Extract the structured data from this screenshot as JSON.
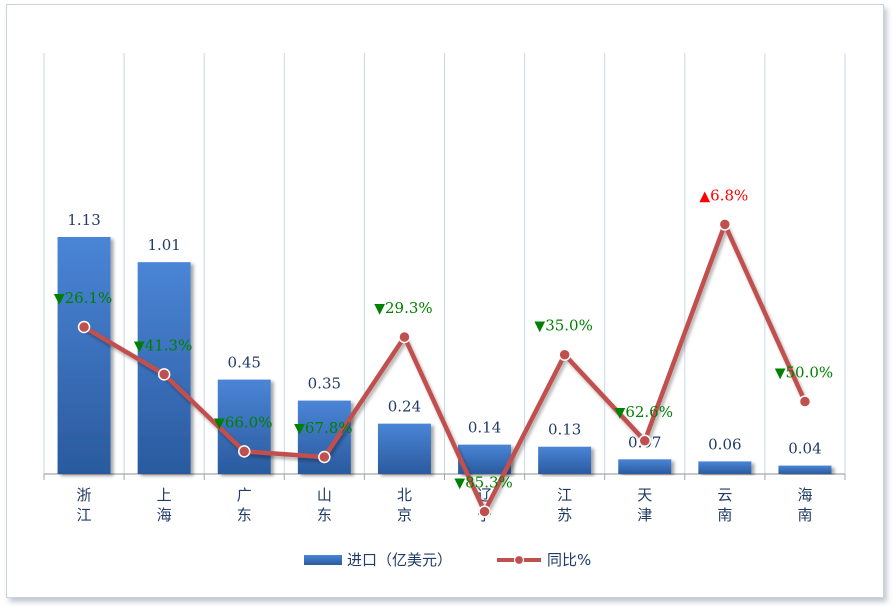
{
  "chart_data": {
    "type": "bar",
    "categories": [
      "浙\n江",
      "上\n海",
      "广\n东",
      "山\n东",
      "北\n京",
      "辽\n宁",
      "江\n苏",
      "天\n津",
      "云\n南",
      "海\n南"
    ],
    "series": [
      {
        "name": "进口（亿美元）",
        "type": "bar",
        "values": [
          1.13,
          1.01,
          0.45,
          0.35,
          0.24,
          0.14,
          0.13,
          0.07,
          0.06,
          0.04
        ],
        "labels": [
          "1.13",
          "1.01",
          "0.45",
          "0.35",
          "0.24",
          "0.14",
          "0.13",
          "0.07",
          "0.06",
          "0.04"
        ],
        "color": "#3a72c4"
      },
      {
        "name": "同比%",
        "type": "line",
        "values": [
          -26.1,
          -41.3,
          -66.0,
          -67.8,
          -29.3,
          -85.3,
          -35.0,
          -62.6,
          6.8,
          -50.0
        ],
        "labels": [
          "26.1%",
          "41.3%",
          "66.0%",
          "67.8%",
          "29.3%",
          "85.3%",
          "35.0%",
          "62.6%",
          "6.8%",
          "50.0%"
        ],
        "color": "#c0504d"
      }
    ],
    "colors": {
      "down": "#008000",
      "up": "#ff0000",
      "grid": "#c7d8ec",
      "axis": "#a6a6a6"
    },
    "markers": {
      "down": "▼",
      "up": "▲"
    },
    "grid": true,
    "legend": "bottom-center"
  }
}
